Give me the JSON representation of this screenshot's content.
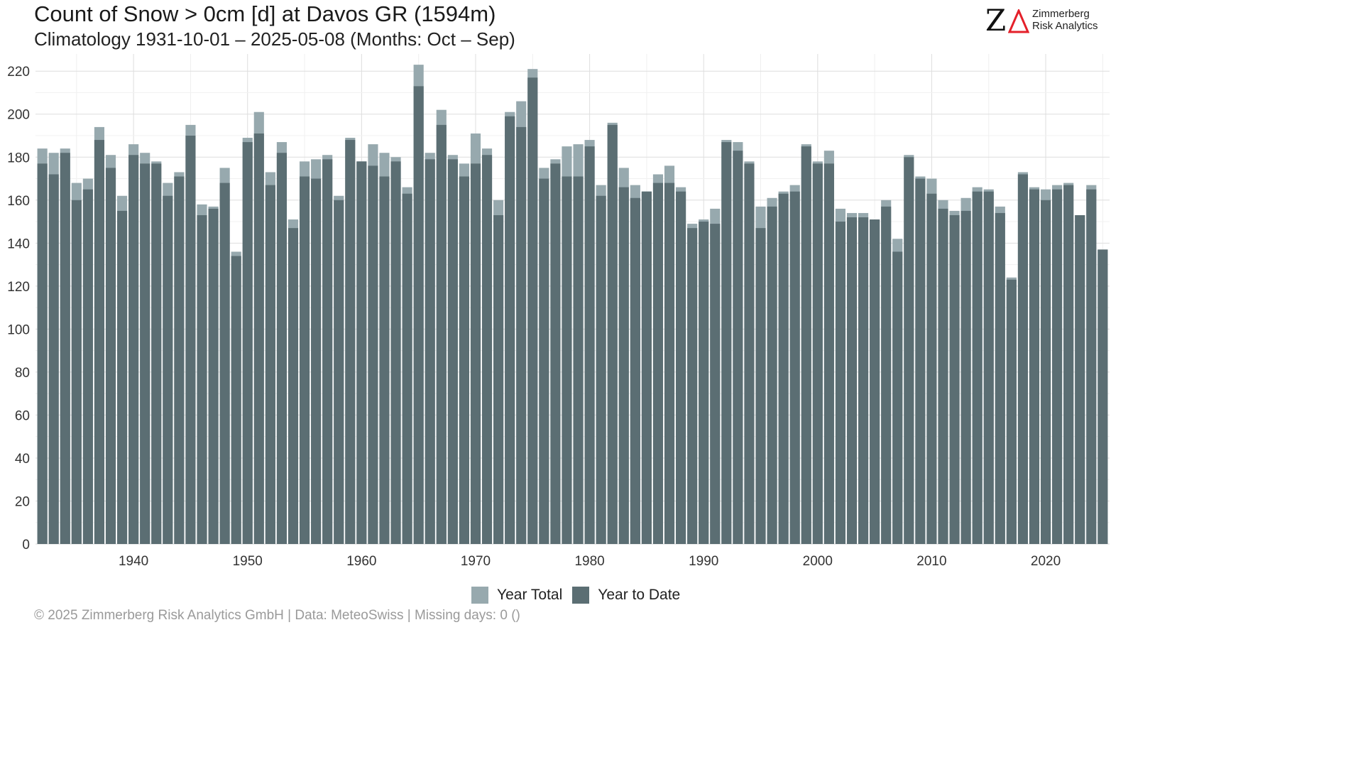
{
  "header": {
    "title": "Count of Snow > 0cm [d] at Davos  GR (1594m)",
    "subtitle": "Climatology 1931-10-01 – 2025-05-08 (Months: Oct – Sep)"
  },
  "logo": {
    "mark": "Z",
    "line1": "Zimmerberg",
    "line2": "Risk Analytics",
    "accent_color": "#e4202a"
  },
  "legend": {
    "items": [
      {
        "label": "Year Total",
        "color": "#97a9ae"
      },
      {
        "label": "Year to Date",
        "color": "#5b6e73"
      }
    ]
  },
  "footer": {
    "text": "©  2025 Zimmerberg Risk Analytics GmbH | Data: MeteoSwiss | Missing days: 0 ()"
  },
  "chart_data": {
    "type": "bar",
    "x": [
      1932,
      1933,
      1934,
      1935,
      1936,
      1937,
      1938,
      1939,
      1940,
      1941,
      1942,
      1943,
      1944,
      1945,
      1946,
      1947,
      1948,
      1949,
      1950,
      1951,
      1952,
      1953,
      1954,
      1955,
      1956,
      1957,
      1958,
      1959,
      1960,
      1961,
      1962,
      1963,
      1964,
      1965,
      1966,
      1967,
      1968,
      1969,
      1970,
      1971,
      1972,
      1973,
      1974,
      1975,
      1976,
      1977,
      1978,
      1979,
      1980,
      1981,
      1982,
      1983,
      1984,
      1985,
      1986,
      1987,
      1988,
      1989,
      1990,
      1991,
      1992,
      1993,
      1994,
      1995,
      1996,
      1997,
      1998,
      1999,
      2000,
      2001,
      2002,
      2003,
      2004,
      2005,
      2006,
      2007,
      2008,
      2009,
      2010,
      2011,
      2012,
      2013,
      2014,
      2015,
      2016,
      2017,
      2018,
      2019,
      2020,
      2021,
      2022,
      2023,
      2024,
      2025
    ],
    "series": [
      {
        "name": "Year Total",
        "values": [
          184,
          182,
          184,
          168,
          170,
          194,
          181,
          162,
          186,
          182,
          178,
          168,
          173,
          195,
          158,
          157,
          175,
          136,
          189,
          201,
          173,
          187,
          151,
          178,
          179,
          181,
          162,
          189,
          178,
          186,
          182,
          180,
          166,
          223,
          182,
          202,
          181,
          177,
          191,
          184,
          160,
          201,
          206,
          221,
          175,
          179,
          185,
          186,
          188,
          167,
          196,
          175,
          167,
          164,
          172,
          176,
          166,
          149,
          151,
          156,
          188,
          187,
          178,
          157,
          161,
          164,
          167,
          186,
          178,
          183,
          156,
          154,
          154,
          151,
          160,
          142,
          181,
          171,
          170,
          160,
          155,
          161,
          166,
          165,
          157,
          124,
          173,
          166,
          165,
          167,
          168,
          153,
          167,
          137
        ]
      },
      {
        "name": "Year to Date",
        "values": [
          177,
          172,
          182,
          160,
          165,
          188,
          175,
          155,
          181,
          177,
          177,
          162,
          171,
          190,
          153,
          156,
          168,
          134,
          187,
          191,
          167,
          182,
          147,
          171,
          170,
          179,
          160,
          188,
          178,
          176,
          171,
          178,
          163,
          213,
          179,
          195,
          179,
          171,
          177,
          181,
          153,
          199,
          194,
          217,
          170,
          177,
          171,
          171,
          185,
          162,
          195,
          166,
          161,
          164,
          168,
          168,
          164,
          147,
          150,
          149,
          187,
          183,
          177,
          147,
          157,
          163,
          164,
          185,
          177,
          177,
          150,
          152,
          152,
          151,
          157,
          136,
          180,
          170,
          163,
          156,
          153,
          155,
          164,
          164,
          154,
          123,
          172,
          165,
          160,
          165,
          167,
          153,
          165,
          137
        ]
      }
    ],
    "x_ticks": [
      1940,
      1950,
      1960,
      1970,
      1980,
      1990,
      2000,
      2010,
      2020
    ],
    "y_ticks": [
      0,
      20,
      40,
      60,
      80,
      100,
      120,
      140,
      160,
      180,
      200,
      220
    ],
    "xlim": [
      1931.4,
      2025.6
    ],
    "ylim": [
      0,
      228
    ],
    "xlabel": "",
    "ylabel": "",
    "grid": true,
    "legend_position": "bottom"
  }
}
